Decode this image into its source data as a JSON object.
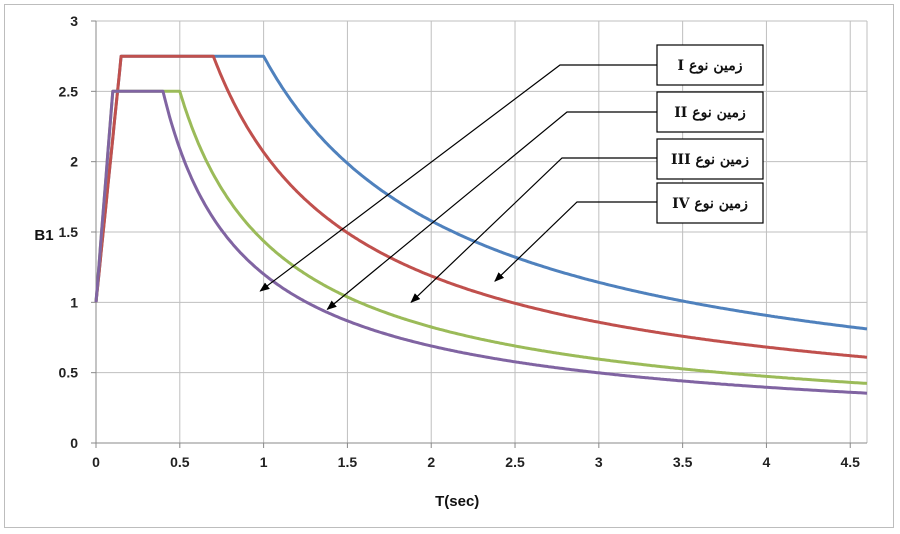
{
  "chart_data": {
    "type": "line",
    "title": "",
    "xlabel": "T(sec)",
    "ylabel": "B1",
    "xlim": [
      0,
      4.6
    ],
    "ylim": [
      0,
      3
    ],
    "xticks": [
      0,
      0.5,
      1,
      1.5,
      2,
      2.5,
      3,
      3.5,
      4,
      4.5
    ],
    "xtick_labels": [
      "0",
      "0.5",
      "1",
      "1.5",
      "2",
      "2.5",
      "3",
      "3.5",
      "4",
      "4.5"
    ],
    "yticks": [
      0,
      0.5,
      1,
      1.5,
      2,
      2.5,
      3
    ],
    "ytick_labels": [
      "0",
      "0.5",
      "1",
      "1.5",
      "2",
      "2.5",
      "3"
    ],
    "grid": true,
    "series": [
      {
        "name": "زمین نوع I",
        "color": "#4f81bd",
        "plateau": 2.75,
        "t0": 0.15,
        "ts": 1.0,
        "exp": 0.8
      },
      {
        "name": "زمین نوع II",
        "color": "#c0504d",
        "plateau": 2.75,
        "t0": 0.15,
        "ts": 0.7,
        "exp": 0.8
      },
      {
        "name": "زمین نوع III",
        "color": "#9bbb59",
        "plateau": 2.5,
        "t0": 0.1,
        "ts": 0.5,
        "exp": 0.8
      },
      {
        "name": "زمین نوع IV",
        "color": "#8064a2",
        "plateau": 2.5,
        "t0": 0.1,
        "ts": 0.4,
        "exp": 0.8
      }
    ],
    "annotations": [
      {
        "text": "زمین نوع I",
        "target": [
          0.98,
          1.08
        ]
      },
      {
        "text": "زمین نوع II",
        "target": [
          1.38,
          0.95
        ]
      },
      {
        "text": "زمین نوع III",
        "target": [
          1.88,
          1.0
        ]
      },
      {
        "text": "زمین نوع IV",
        "target": [
          2.38,
          1.15
        ]
      }
    ]
  }
}
